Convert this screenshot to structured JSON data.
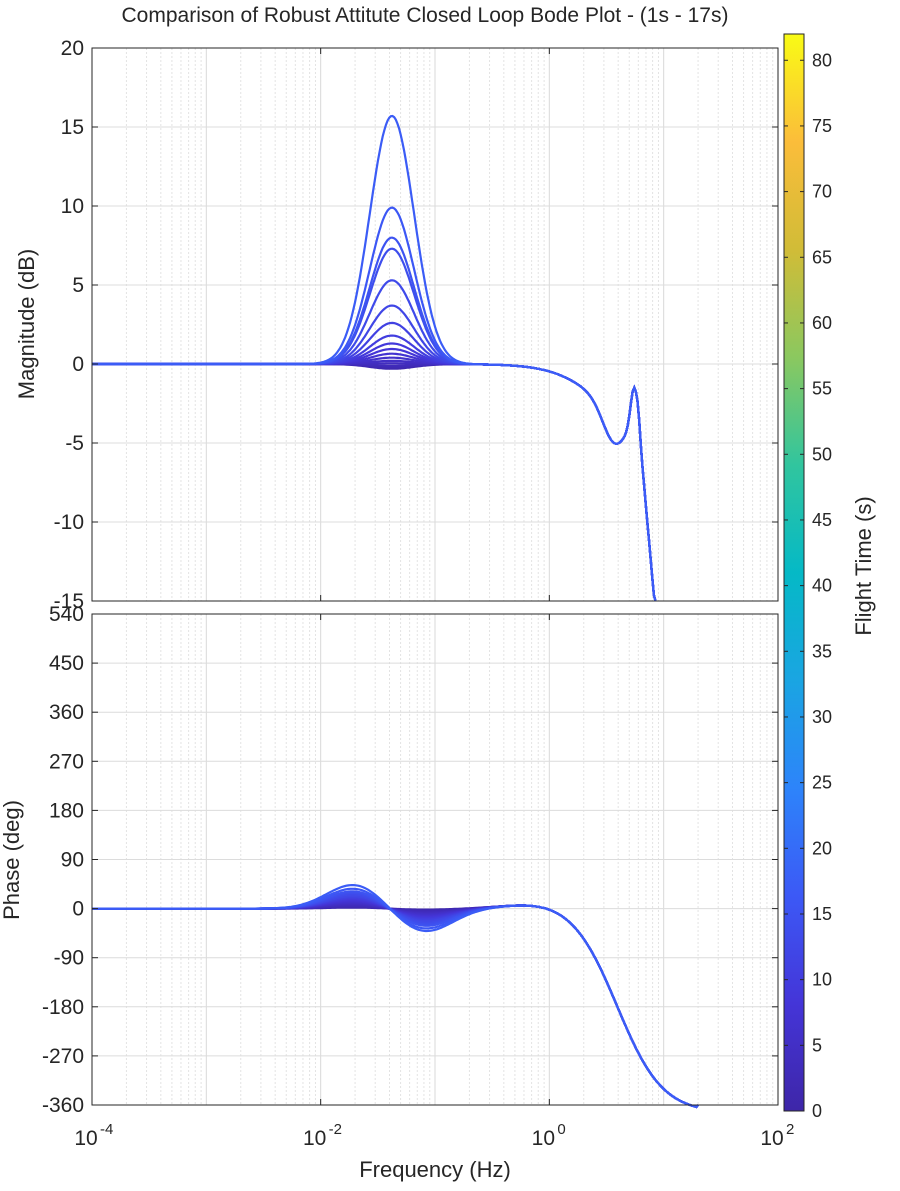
{
  "chart_data": {
    "type": "line",
    "title": "Comparison of Robust Attitute Closed Loop Bode Plot - (1s - 17s)",
    "xlabel": "Frequency  (Hz)",
    "x_scale": "log",
    "xlim": [
      0.0001,
      100
    ],
    "x_ticks": [
      {
        "value": 0.0001,
        "base": "10",
        "exp": "-4"
      },
      {
        "value": 0.01,
        "base": "10",
        "exp": "-2"
      },
      {
        "value": 1,
        "base": "10",
        "exp": "0"
      },
      {
        "value": 100,
        "base": "10",
        "exp": "2"
      }
    ],
    "grid": true,
    "panels": [
      {
        "name": "magnitude",
        "ylabel": "Magnitude (dB)",
        "ylim": [
          -15,
          20
        ],
        "yticks": [
          "20",
          "15",
          "10",
          "5",
          "0",
          "-5",
          "-10",
          "-15"
        ]
      },
      {
        "name": "phase",
        "ylabel": "Phase (deg)",
        "ylim": [
          -360,
          540
        ],
        "yticks": [
          "540",
          "450",
          "360",
          "270",
          "180",
          "90",
          "0",
          "-90",
          "-180",
          "-270",
          "-360"
        ]
      }
    ],
    "colorbar": {
      "label": "Flight Time (s)",
      "range": [
        0,
        82
      ],
      "ticks": [
        "0",
        "5",
        "10",
        "15",
        "20",
        "25",
        "30",
        "35",
        "40",
        "45",
        "50",
        "55",
        "60",
        "65",
        "70",
        "75",
        "80"
      ],
      "colormap": "parula"
    },
    "series_note_values": {
      "flight_times_s": [
        1,
        2,
        3,
        4,
        5,
        6,
        7,
        8,
        9,
        10,
        11,
        12,
        13,
        14,
        15,
        16,
        17
      ],
      "magnitude_peak_dB": [
        -0.3,
        -0.2,
        -0.1,
        0.05,
        0.2,
        0.4,
        0.65,
        0.95,
        1.3,
        1.8,
        2.6,
        3.7,
        5.3,
        7.3,
        8.0,
        9.9,
        15.7
      ],
      "peak_frequency_Hz": 0.042,
      "high_freq_notch_dB": -7.7,
      "notch_frequency_Hz": 3.7,
      "resonance_peak_dB": -5.0,
      "resonance_frequency_Hz": 5.5,
      "phase_bump_max_deg": [
        2,
        4,
        6,
        8,
        10,
        12,
        14,
        16,
        18,
        20,
        22,
        24,
        27,
        30,
        33,
        38,
        45
      ],
      "phase_dip_min_deg": [
        -2,
        -4,
        -6,
        -8,
        -10,
        -12,
        -14,
        -16,
        -18,
        -20,
        -22,
        -24,
        -27,
        -30,
        -33,
        -38,
        -43
      ],
      "phase_at_1Hz_deg": 15,
      "phase_at_10Hz_deg": -360
    }
  }
}
